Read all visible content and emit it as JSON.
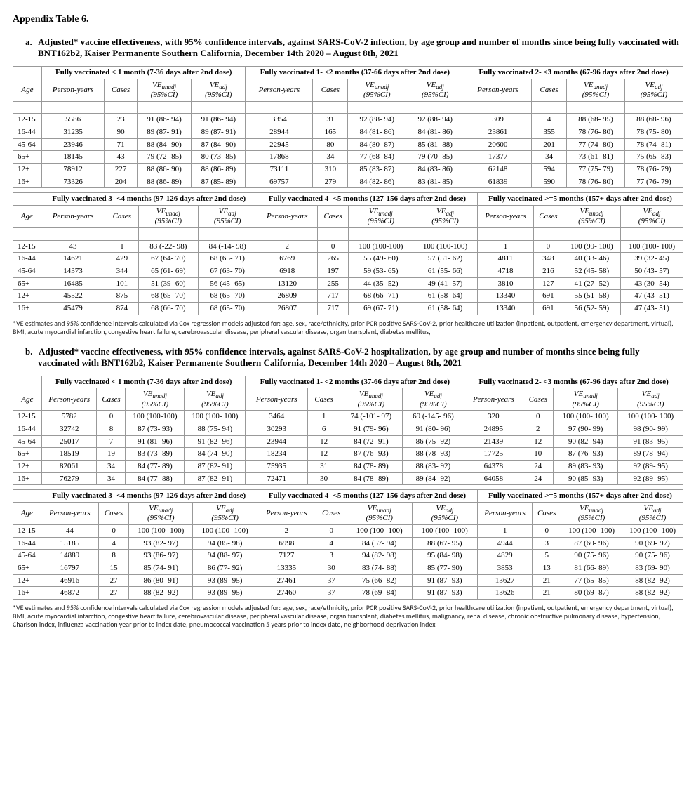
{
  "title": "Appendix Table 6.",
  "section_a": {
    "letter": "a.",
    "heading": "Adjusted* vaccine effectiveness, with 95% confidence intervals, against SARS-CoV-2 infection, by age group and number of months since being fully vaccinated with BNT162b2, Kaiser Permanente Southern California, December 14th 2020 – August 8th, 2021",
    "group_headers_1": [
      "Fully vaccinated < 1 month (7-36 days after 2nd dose)",
      "Fully vaccinated 1- <2 months (37-66 days after 2nd dose)",
      "Fully vaccinated 2- <3 months (67-96 days after 2nd dose)"
    ],
    "group_headers_2": [
      "Fully vaccinated 3- <4 months (97-126 days after 2nd dose)",
      "Fully vaccinated 4- <5 months (127-156 days after 2nd dose)",
      "Fully vaccinated >=5 months (157+ days after 2nd dose)"
    ],
    "sub_headers": [
      "Person-years",
      "Cases",
      "VEunadj (95%CI)",
      "VEadj (95%CI)"
    ],
    "age_label": "Age",
    "rows_1": [
      {
        "age": "12-15",
        "g1": [
          "5586",
          "23",
          "91 (86- 94)",
          "91 (86- 94)"
        ],
        "g2": [
          "3354",
          "31",
          "92 (88- 94)",
          "92 (88- 94)"
        ],
        "g3": [
          "309",
          "4",
          "88 (68- 95)",
          "88 (68- 96)"
        ]
      },
      {
        "age": "16-44",
        "g1": [
          "31235",
          "90",
          "89 (87- 91)",
          "89 (87- 91)"
        ],
        "g2": [
          "28944",
          "165",
          "84 (81- 86)",
          "84 (81- 86)"
        ],
        "g3": [
          "23861",
          "355",
          "78 (76- 80)",
          "78 (75- 80)"
        ]
      },
      {
        "age": "45-64",
        "g1": [
          "23946",
          "71",
          "88 (84- 90)",
          "87 (84- 90)"
        ],
        "g2": [
          "22945",
          "80",
          "84 (80- 87)",
          "85 (81- 88)"
        ],
        "g3": [
          "20600",
          "201",
          "77 (74- 80)",
          "78 (74- 81)"
        ]
      },
      {
        "age": "65+",
        "g1": [
          "18145",
          "43",
          "79 (72- 85)",
          "80 (73- 85)"
        ],
        "g2": [
          "17868",
          "34",
          "77 (68- 84)",
          "79 (70- 85)"
        ],
        "g3": [
          "17377",
          "34",
          "73 (61- 81)",
          "75 (65- 83)"
        ]
      },
      {
        "age": "12+",
        "g1": [
          "78912",
          "227",
          "88 (86- 90)",
          "88 (86- 89)"
        ],
        "g2": [
          "73111",
          "310",
          "85 (83- 87)",
          "84 (83- 86)"
        ],
        "g3": [
          "62148",
          "594",
          "77 (75- 79)",
          "78 (76- 79)"
        ]
      },
      {
        "age": "16+",
        "g1": [
          "73326",
          "204",
          "88 (86- 89)",
          "87 (85- 89)"
        ],
        "g2": [
          "69757",
          "279",
          "84 (82- 86)",
          "83 (81- 85)"
        ],
        "g3": [
          "61839",
          "590",
          "78 (76- 80)",
          "77 (76- 79)"
        ]
      }
    ],
    "rows_2": [
      {
        "age": "12-15",
        "g1": [
          "43",
          "1",
          "83 (-22- 98)",
          "84 (-14- 98)"
        ],
        "g2": [
          "2",
          "0",
          "100 (100-100)",
          "100 (100-100)"
        ],
        "g3": [
          "1",
          "0",
          "100 (99- 100)",
          "100 (100- 100)"
        ]
      },
      {
        "age": "16-44",
        "g1": [
          "14621",
          "429",
          "67 (64- 70)",
          "68 (65- 71)"
        ],
        "g2": [
          "6769",
          "265",
          "55 (49- 60)",
          "57 (51- 62)"
        ],
        "g3": [
          "4811",
          "348",
          "40 (33- 46)",
          "39 (32- 45)"
        ]
      },
      {
        "age": "45-64",
        "g1": [
          "14373",
          "344",
          "65 (61- 69)",
          "67 (63- 70)"
        ],
        "g2": [
          "6918",
          "197",
          "59 (53- 65)",
          "61 (55- 66)"
        ],
        "g3": [
          "4718",
          "216",
          "52 (45- 58)",
          "50 (43- 57)"
        ]
      },
      {
        "age": "65+",
        "g1": [
          "16485",
          "101",
          "51 (39- 60)",
          "56 (45- 65)"
        ],
        "g2": [
          "13120",
          "255",
          "44 (35- 52)",
          "49 (41- 57)"
        ],
        "g3": [
          "3810",
          "127",
          "41 (27- 52)",
          "43 (30- 54)"
        ]
      },
      {
        "age": "12+",
        "g1": [
          "45522",
          "875",
          "68 (65- 70)",
          "68 (65- 70)"
        ],
        "g2": [
          "26809",
          "717",
          "68 (66- 71)",
          "61 (58- 64)"
        ],
        "g3": [
          "13340",
          "691",
          "55 (51- 58)",
          "47 (43- 51)"
        ]
      },
      {
        "age": "16+",
        "g1": [
          "45479",
          "874",
          "68 (66- 70)",
          "68 (65- 70)"
        ],
        "g2": [
          "26807",
          "717",
          "69 (67- 71)",
          "61 (58- 64)"
        ],
        "g3": [
          "13340",
          "691",
          "56 (52- 59)",
          "47 (43- 51)"
        ]
      }
    ],
    "footnote": "*VE estimates and 95% confidence intervals calculated via Cox regression models adjusted for: age, sex, race/ethnicity, prior PCR positive SARS-CoV-2, prior healthcare utilization (inpatient, outpatient, emergency department, virtual), BMI, acute myocardial infarction, congestive heart failure, cerebrovascular disease, peripheral vascular disease, organ transplant, diabetes mellitus,"
  },
  "section_b": {
    "letter": "b.",
    "heading": "Adjusted* vaccine effectiveness, with 95% confidence intervals, against SARS-CoV-2 hospitalization, by age group and number of months since being fully vaccinated with BNT162b2, Kaiser Permanente Southern California, December 14th 2020 – August 8th, 2021",
    "group_headers_1": [
      "Fully vaccinated < 1 month (7-36 days after 2nd dose)",
      "Fully vaccinated 1- <2 months (37-66 days after 2nd dose)",
      "Fully vaccinated 2- <3 months (67-96 days after 2nd dose)"
    ],
    "group_headers_2": [
      "Fully vaccinated 3- <4 months (97-126 days after 2nd dose)",
      "Fully vaccinated 4- <5 months (127-156 days after 2nd dose)",
      "Fully vaccinated >=5 months (157+ days after 2nd dose)"
    ],
    "sub_headers": [
      "Person-years",
      "Cases",
      "VEunadj (95%CI)",
      "VEadj (95%CI)"
    ],
    "age_label": "Age",
    "rows_1": [
      {
        "age": "12-15",
        "g1": [
          "5782",
          "0",
          "100 (100-100)",
          "100 (100- 100)"
        ],
        "g2": [
          "3464",
          "1",
          "74 (-101- 97)",
          "69 (-145- 96)"
        ],
        "g3": [
          "320",
          "0",
          "100 (100- 100)",
          "100 (100- 100)"
        ]
      },
      {
        "age": "16-44",
        "g1": [
          "32742",
          "8",
          "87 (73- 93)",
          "88 (75- 94)"
        ],
        "g2": [
          "30293",
          "6",
          "91 (79- 96)",
          "91 (80- 96)"
        ],
        "g3": [
          "24895",
          "2",
          "97 (90- 99)",
          "98 (90- 99)"
        ]
      },
      {
        "age": "45-64",
        "g1": [
          "25017",
          "7",
          "91 (81- 96)",
          "91 (82- 96)"
        ],
        "g2": [
          "23944",
          "12",
          "84 (72- 91)",
          "86 (75- 92)"
        ],
        "g3": [
          "21439",
          "12",
          "90 (82- 94)",
          "91 (83- 95)"
        ]
      },
      {
        "age": "65+",
        "g1": [
          "18519",
          "19",
          "83 (73- 89)",
          "84 (74- 90)"
        ],
        "g2": [
          "18234",
          "12",
          "87 (76- 93)",
          "88 (78- 93)"
        ],
        "g3": [
          "17725",
          "10",
          "87 (76- 93)",
          "89 (78- 94)"
        ]
      },
      {
        "age": "12+",
        "g1": [
          "82061",
          "34",
          "84 (77- 89)",
          "87 (82- 91)"
        ],
        "g2": [
          "75935",
          "31",
          "84 (78- 89)",
          "88 (83- 92)"
        ],
        "g3": [
          "64378",
          "24",
          "89 (83- 93)",
          "92 (89- 95)"
        ]
      },
      {
        "age": "16+",
        "g1": [
          "76279",
          "34",
          "84 (77- 88)",
          "87 (82- 91)"
        ],
        "g2": [
          "72471",
          "30",
          "84 (78- 89)",
          "89 (84- 92)"
        ],
        "g3": [
          "64058",
          "24",
          "90 (85- 93)",
          "92 (89- 95)"
        ]
      }
    ],
    "rows_2": [
      {
        "age": "12-15",
        "g1": [
          "44",
          "0",
          "100 (100- 100)",
          "100 (100- 100)"
        ],
        "g2": [
          "2",
          "0",
          "100 (100- 100)",
          "100 (100- 100)"
        ],
        "g3": [
          "1",
          "0",
          "100 (100- 100)",
          "100 (100- 100)"
        ]
      },
      {
        "age": "16-44",
        "g1": [
          "15185",
          "4",
          "93 (82- 97)",
          "94 (85- 98)"
        ],
        "g2": [
          "6998",
          "4",
          "84 (57- 94)",
          "88 (67- 95)"
        ],
        "g3": [
          "4944",
          "3",
          "87 (60- 96)",
          "90 (69- 97)"
        ]
      },
      {
        "age": "45-64",
        "g1": [
          "14889",
          "8",
          "93 (86- 97)",
          "94 (88- 97)"
        ],
        "g2": [
          "7127",
          "3",
          "94 (82- 98)",
          "95 (84- 98)"
        ],
        "g3": [
          "4829",
          "5",
          "90 (75- 96)",
          "90 (75- 96)"
        ]
      },
      {
        "age": "65+",
        "g1": [
          "16797",
          "15",
          "85 (74- 91)",
          "86 (77- 92)"
        ],
        "g2": [
          "13335",
          "30",
          "83 (74- 88)",
          "85 (77- 90)"
        ],
        "g3": [
          "3853",
          "13",
          "81 (66- 89)",
          "83 (69- 90)"
        ]
      },
      {
        "age": "12+",
        "g1": [
          "46916",
          "27",
          "86 (80- 91)",
          "93 (89- 95)"
        ],
        "g2": [
          "27461",
          "37",
          "75 (66- 82)",
          "91 (87- 93)"
        ],
        "g3": [
          "13627",
          "21",
          "77 (65- 85)",
          "88 (82- 92)"
        ]
      },
      {
        "age": "16+",
        "g1": [
          "46872",
          "27",
          "88 (82- 92)",
          "93 (89- 95)"
        ],
        "g2": [
          "27460",
          "37",
          "78 (69- 84)",
          "91 (87- 93)"
        ],
        "g3": [
          "13626",
          "21",
          "80 (69- 87)",
          "88 (82- 92)"
        ]
      }
    ],
    "footnote": "*VE estimates and 95% confidence intervals calculated via Cox regression models adjusted for: age, sex, race/ethnicity, prior PCR positive SARS-CoV-2, prior healthcare utilization (inpatient, outpatient, emergency department, virtual), BMI, acute myocardial infarction, congestive heart failure, cerebrovascular disease, peripheral vascular disease, organ transplant, diabetes mellitus, malignancy, renal disease, chronic obstructive pulmonary disease, hypertension, Charlson index, influenza vaccination year prior to index date, pneumococcal vaccination 5 years prior to index date, neighborhood deprivation index"
  },
  "style": {
    "font_family": "Times New Roman",
    "table_border_color": "#999999",
    "text_color": "#000000",
    "background": "#ffffff",
    "footnote_font": "Calibri"
  }
}
